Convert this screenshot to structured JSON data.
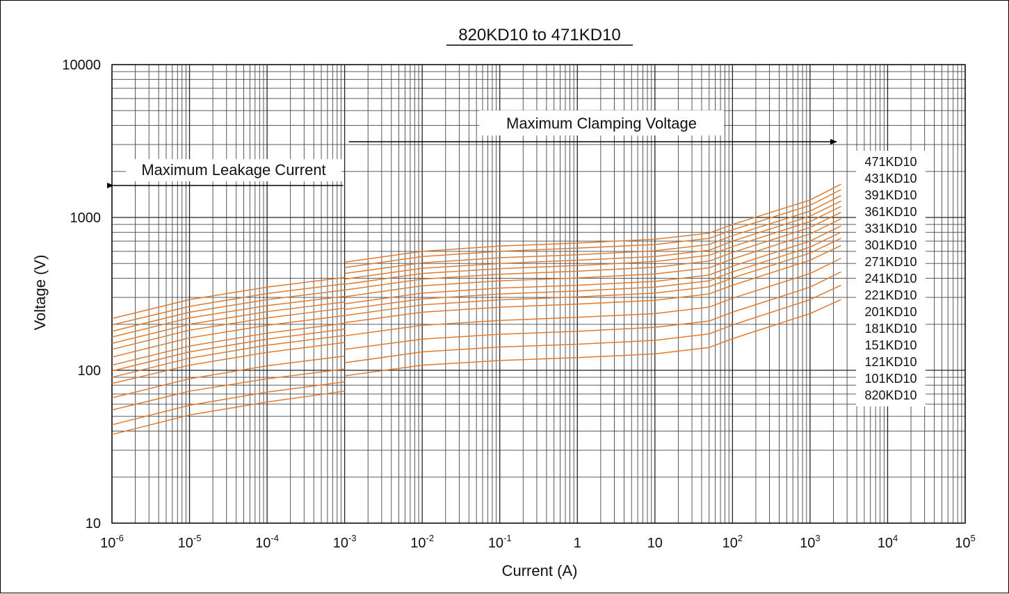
{
  "chart_data": {
    "type": "line",
    "title": "820KD10 to 471KD10",
    "xlabel": "Current (A)",
    "ylabel": "Voltage (V)",
    "x_scale": "log",
    "y_scale": "log",
    "xlim": [
      1e-06,
      100000
    ],
    "ylim": [
      10,
      10000
    ],
    "grid": true,
    "line_color": "#e07b2e",
    "x_ticks": [
      {
        "value": 1e-06,
        "base": "10",
        "exp": "-6"
      },
      {
        "value": 1e-05,
        "base": "10",
        "exp": "-5"
      },
      {
        "value": 0.0001,
        "base": "10",
        "exp": "-4"
      },
      {
        "value": 0.001,
        "base": "10",
        "exp": "-3"
      },
      {
        "value": 0.01,
        "base": "10",
        "exp": "-2"
      },
      {
        "value": 0.1,
        "base": "10",
        "exp": "-1"
      },
      {
        "value": 1,
        "base": "1",
        "exp": ""
      },
      {
        "value": 10,
        "base": "10",
        "exp": ""
      },
      {
        "value": 100,
        "base": "10",
        "exp": "2"
      },
      {
        "value": 1000,
        "base": "10",
        "exp": "3"
      },
      {
        "value": 10000,
        "base": "10",
        "exp": "4"
      },
      {
        "value": 100000,
        "base": "10",
        "exp": "5"
      }
    ],
    "y_ticks": [
      {
        "value": 10,
        "label": "10"
      },
      {
        "value": 100,
        "label": "100"
      },
      {
        "value": 1000,
        "label": "1000"
      },
      {
        "value": 10000,
        "label": "10000"
      }
    ],
    "annotations": {
      "clamping": "Maximum Clamping Voltage",
      "leakage": "Maximum Leakage Current"
    },
    "legend": [
      "471KD10",
      "431KD10",
      "391KD10",
      "361KD10",
      "331KD10",
      "301KD10",
      "271KD10",
      "241KD10",
      "221KD10",
      "201KD10",
      "181KD10",
      "151KD10",
      "121KD10",
      "101KD10",
      "820KD10"
    ],
    "legend_position": "right",
    "leakage_x": [
      1e-06,
      1e-05,
      0.0001,
      0.001
    ],
    "clamp_x": [
      0.001,
      0.01,
      0.1,
      1,
      10,
      50,
      100,
      1000,
      2500
    ],
    "series": [
      {
        "name": "471KD10",
        "leakage_y": [
          218,
          290,
          350,
          405
        ],
        "clamp_y": [
          510,
          600,
          650,
          680,
          720,
          790,
          900,
          1300,
          1650
        ]
      },
      {
        "name": "431KD10",
        "leakage_y": [
          198,
          262,
          318,
          368
        ],
        "clamp_y": [
          470,
          555,
          600,
          630,
          665,
          730,
          830,
          1200,
          1520
        ]
      },
      {
        "name": "391KD10",
        "leakage_y": [
          180,
          240,
          290,
          335
        ],
        "clamp_y": [
          430,
          505,
          545,
          570,
          605,
          665,
          760,
          1100,
          1390
        ]
      },
      {
        "name": "361KD10",
        "leakage_y": [
          165,
          220,
          265,
          305
        ],
        "clamp_y": [
          395,
          465,
          500,
          525,
          555,
          610,
          700,
          1020,
          1280
        ]
      },
      {
        "name": "331KD10",
        "leakage_y": [
          150,
          200,
          242,
          280
        ],
        "clamp_y": [
          365,
          430,
          462,
          485,
          515,
          565,
          645,
          940,
          1180
        ]
      },
      {
        "name": "301KD10",
        "leakage_y": [
          137,
          183,
          220,
          255
        ],
        "clamp_y": [
          335,
          395,
          425,
          445,
          472,
          518,
          590,
          860,
          1080
        ]
      },
      {
        "name": "271KD10",
        "leakage_y": [
          122,
          163,
          197,
          228
        ],
        "clamp_y": [
          303,
          357,
          385,
          402,
          427,
          468,
          535,
          780,
          980
        ]
      },
      {
        "name": "241KD10",
        "leakage_y": [
          108,
          144,
          175,
          203
        ],
        "clamp_y": [
          272,
          320,
          345,
          360,
          382,
          420,
          480,
          700,
          880
        ]
      },
      {
        "name": "221KD10",
        "leakage_y": [
          99,
          132,
          160,
          186
        ],
        "clamp_y": [
          250,
          293,
          316,
          330,
          350,
          385,
          440,
          640,
          800
        ]
      },
      {
        "name": "201KD10",
        "leakage_y": [
          90,
          120,
          146,
          169
        ],
        "clamp_y": [
          228,
          268,
          289,
          302,
          320,
          352,
          402,
          585,
          730
        ]
      },
      {
        "name": "181KD10",
        "leakage_y": [
          82,
          108,
          131,
          152
        ],
        "clamp_y": [
          205,
          240,
          259,
          271,
          287,
          316,
          360,
          525,
          655
        ]
      },
      {
        "name": "151KD10",
        "leakage_y": [
          66,
          88,
          107,
          124
        ],
        "clamp_y": [
          168,
          197,
          212,
          222,
          235,
          259,
          296,
          430,
          540
        ]
      },
      {
        "name": "121KD10",
        "leakage_y": [
          55,
          73,
          88,
          102
        ],
        "clamp_y": [
          137,
          160,
          172,
          180,
          191,
          210,
          240,
          350,
          440
        ]
      },
      {
        "name": "101KD10",
        "leakage_y": [
          44,
          59,
          72,
          84
        ],
        "clamp_y": [
          112,
          132,
          142,
          148,
          157,
          173,
          198,
          290,
          360
        ]
      },
      {
        "name": "820KD10",
        "leakage_y": [
          38,
          51,
          62,
          73
        ],
        "clamp_y": [
          92,
          108,
          116,
          121,
          128,
          141,
          161,
          235,
          290
        ]
      }
    ]
  }
}
